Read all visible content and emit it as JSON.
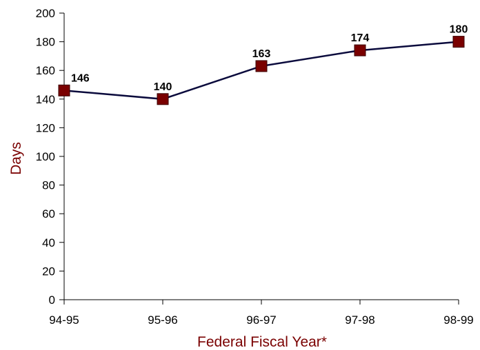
{
  "chart_data": {
    "type": "line",
    "title": "",
    "xlabel": "Federal Fiscal Year*",
    "ylabel": "Days",
    "categories": [
      "94-95",
      "95-96",
      "96-97",
      "97-98",
      "98-99"
    ],
    "series": [
      {
        "values": [
          146,
          140,
          163,
          174,
          180
        ]
      }
    ],
    "data_labels": [
      "146",
      "140",
      "163",
      "174",
      "180"
    ],
    "ylim": [
      0,
      200
    ],
    "yticks": [
      0,
      20,
      40,
      60,
      80,
      100,
      120,
      140,
      160,
      180,
      200
    ],
    "ytick_labels": [
      "0",
      "20",
      "40",
      "60",
      "80",
      "100",
      "120",
      "140",
      "160",
      "180",
      "200"
    ],
    "grid": false,
    "legend": "none",
    "colors": {
      "line": "#0a0a3c",
      "marker": "#7a0000",
      "marker_border": "#3a0000",
      "axis_title": "#7a0000",
      "axis": "#000000"
    }
  }
}
